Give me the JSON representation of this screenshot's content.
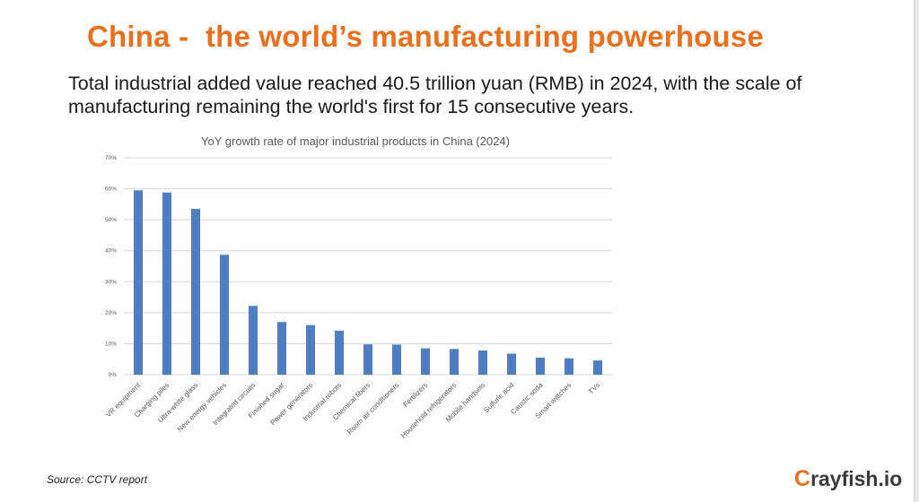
{
  "slide": {
    "title": "China -  the world’s manufacturing powerhouse",
    "subtitle": "Total industrial added value reached 40.5 trillion yuan (RMB) in 2024, with the scale of manufacturing remaining the world's first for 15 consecutive years.",
    "source": "Source: CCTV report",
    "logo_mark": "C",
    "logo_text": "rayfish.io",
    "logo_accessible_name": "Crayfish.io"
  },
  "colors": {
    "title": "#e8701f",
    "bar": "#4f7fc1",
    "grid": "#d9d9d9",
    "axis_text": "#595959"
  },
  "chart_data": {
    "type": "bar",
    "title": "YoY growth rate of major industrial products in China (2024)",
    "xlabel": "",
    "ylabel": "",
    "ylim": [
      0,
      70
    ],
    "yticks": [
      "0%",
      "10%",
      "20%",
      "30%",
      "40%",
      "50%",
      "60%",
      "70%"
    ],
    "grid": true,
    "legend": "none",
    "categories": [
      "VR equipment",
      "Charging piles",
      "Ultra-white glass",
      "New energy vehicles",
      "Integrated circuits",
      "Finished sugar",
      "Power generators",
      "Industrial robots",
      "Chemical fibers",
      "Room air conditioners",
      "Fertilizers",
      "Household refrigerators",
      "Mobile handsets",
      "Sulfuric acid",
      "Caustic soda",
      "Smart watches",
      "TVs"
    ],
    "values": [
      59.5,
      58.8,
      53.5,
      38.7,
      22.2,
      17.0,
      16.0,
      14.2,
      9.8,
      9.7,
      8.5,
      8.3,
      7.8,
      6.8,
      5.5,
      5.3,
      4.6
    ]
  }
}
